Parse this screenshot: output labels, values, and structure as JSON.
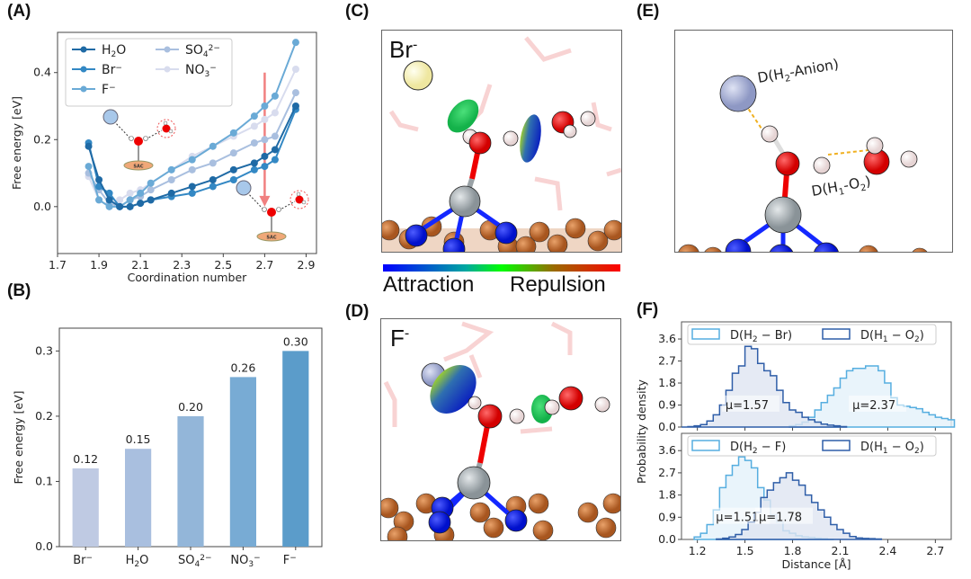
{
  "panels": {
    "A": {
      "label": "(A)"
    },
    "B": {
      "label": "(B)"
    },
    "C": {
      "label": "(C)",
      "ion_label": "Br",
      "ion_charge": "-"
    },
    "D": {
      "label": "(D)",
      "ion_label": "F",
      "ion_charge": "-"
    },
    "E": {
      "label": "(E)",
      "annot1": "D(H",
      "annot1_sub": "2",
      "annot1_tail": "-Anion)",
      "annot2": "D(H",
      "annot2_sub1": "1",
      "annot2_mid": "-O",
      "annot2_sub2": "2",
      "annot2_tail": ")"
    },
    "F": {
      "label": "(F)"
    }
  },
  "colorbar": {
    "left_label": "Attraction",
    "right_label": "Repulsion",
    "colors": [
      "#0000ff",
      "#00ff00",
      "#ff0000"
    ]
  },
  "schematic": {
    "sac_label": "SAC"
  },
  "chart_data": [
    {
      "id": "A",
      "type": "line",
      "title": "",
      "xlabel": "Coordination number",
      "ylabel": "Free energy [eV]",
      "xlim": [
        1.7,
        2.95
      ],
      "ylim": [
        -0.14,
        0.52
      ],
      "xticks": [
        "1.7",
        "1.9",
        "2.1",
        "2.3",
        "2.5",
        "2.7",
        "2.9"
      ],
      "xtick_values": [
        1.7,
        1.9,
        2.1,
        2.3,
        2.5,
        2.7,
        2.9
      ],
      "yticks": [
        "0.0",
        "0.2",
        "0.4"
      ],
      "ytick_values": [
        0.0,
        0.2,
        0.4
      ],
      "legend_position": "top-left",
      "x": [
        1.85,
        1.9,
        1.95,
        2.0,
        2.05,
        2.1,
        2.15,
        2.25,
        2.35,
        2.45,
        2.55,
        2.65,
        2.7,
        2.75,
        2.85
      ],
      "series": [
        {
          "name": "H₂O",
          "name_main": "H",
          "name_sub": "2",
          "name_tail": "O",
          "name_sup": "",
          "color": "#1f6aa5",
          "values": [
            0.18,
            0.08,
            0.02,
            0.0,
            0.0,
            0.01,
            0.02,
            0.04,
            0.06,
            0.08,
            0.11,
            0.13,
            0.15,
            0.17,
            0.3
          ]
        },
        {
          "name": "Br⁻",
          "name_main": "Br",
          "name_sub": "",
          "name_tail": "",
          "name_sup": "−",
          "color": "#3388c4",
          "values": [
            0.19,
            0.06,
            0.04,
            0.0,
            0.0,
            0.01,
            0.02,
            0.03,
            0.04,
            0.06,
            0.08,
            0.11,
            0.12,
            0.14,
            0.29
          ]
        },
        {
          "name": "F⁻",
          "name_main": "F",
          "name_sub": "",
          "name_tail": "",
          "name_sup": "−",
          "color": "#6aaad6",
          "values": [
            0.12,
            0.02,
            0.0,
            0.0,
            0.02,
            0.04,
            0.07,
            0.11,
            0.14,
            0.18,
            0.22,
            0.27,
            0.3,
            0.33,
            0.49
          ]
        },
        {
          "name": "SO₄²⁻",
          "name_main": "SO",
          "name_sub": "4",
          "name_tail": "",
          "name_sup": "2−",
          "color": "#a9bfdf",
          "values": [
            0.1,
            0.05,
            0.01,
            0.0,
            0.02,
            0.03,
            0.05,
            0.08,
            0.11,
            0.13,
            0.16,
            0.19,
            0.2,
            0.21,
            0.34
          ]
        },
        {
          "name": "NO₃⁻",
          "name_main": "NO",
          "name_sub": "3",
          "name_tail": "",
          "name_sup": "−",
          "color": "#d8dcee",
          "values": [
            0.09,
            0.02,
            0.0,
            0.02,
            0.04,
            0.05,
            0.07,
            0.11,
            0.15,
            0.18,
            0.21,
            0.24,
            0.26,
            0.28,
            0.41
          ]
        }
      ],
      "annotation": {
        "type": "arrow",
        "x": 2.7,
        "from_y": 0.4,
        "to_y": 0.0,
        "color": "#f08080"
      }
    },
    {
      "id": "B",
      "type": "bar",
      "title": "",
      "xlabel": "",
      "ylabel": "Free energy [eV]",
      "ylim": [
        0.0,
        0.335
      ],
      "yticks": [
        "0.0",
        "0.1",
        "0.2",
        "0.3"
      ],
      "ytick_values": [
        0.0,
        0.1,
        0.2,
        0.3
      ],
      "categories": [
        {
          "main": "Br",
          "sub": "",
          "sup": "−"
        },
        {
          "main": "H",
          "sub": "2",
          "tail": "O",
          "sup": ""
        },
        {
          "main": "SO",
          "sub": "4",
          "sup": "2−"
        },
        {
          "main": "NO",
          "sub": "3",
          "sup": "−"
        },
        {
          "main": "F",
          "sub": "",
          "sup": "−"
        }
      ],
      "category_names": [
        "Br⁻",
        "H₂O",
        "SO₄²⁻",
        "NO₃⁻",
        "F⁻"
      ],
      "values": [
        0.12,
        0.15,
        0.2,
        0.26,
        0.3
      ],
      "data_labels": [
        "0.12",
        "0.15",
        "0.20",
        "0.26",
        "0.30"
      ],
      "colors": [
        "#bfcae3",
        "#a9bfdf",
        "#93b6d9",
        "#78abd4",
        "#5b9cca"
      ]
    },
    {
      "id": "F-top",
      "type": "area",
      "title": "",
      "xlabel": "",
      "ylabel": "Probability density",
      "xlim": [
        1.1,
        2.8
      ],
      "ylim": [
        0.0,
        4.3
      ],
      "yticks": [
        "0.0",
        "0.9",
        "1.8",
        "2.7",
        "3.6"
      ],
      "ytick_values": [
        0.0,
        0.9,
        1.8,
        2.7,
        3.6
      ],
      "legend_position": "top",
      "series": [
        {
          "name": "D(H₂ − Br)",
          "legend_main": "D(H",
          "legend_sub": "2",
          "legend_tail": " − Br)",
          "color": "#56aee0",
          "fill": "#e4f1fa",
          "mean_label": "μ=2.37",
          "mean": 2.37,
          "bins": [
            1.78,
            1.82,
            1.86,
            1.9,
            1.94,
            1.98,
            2.02,
            2.06,
            2.1,
            2.14,
            2.18,
            2.22,
            2.26,
            2.3,
            2.34,
            2.38,
            2.42,
            2.46,
            2.5,
            2.54,
            2.58,
            2.62,
            2.66,
            2.7,
            2.74,
            2.78
          ],
          "density": [
            0.05,
            0.1,
            0.2,
            0.4,
            0.7,
            1.0,
            1.3,
            1.6,
            2.0,
            2.3,
            2.4,
            2.4,
            2.5,
            2.5,
            2.3,
            1.8,
            1.2,
            0.9,
            0.85,
            0.8,
            0.75,
            0.6,
            0.5,
            0.4,
            0.35,
            0.3
          ]
        },
        {
          "name": "D(H₁ − O₂)",
          "legend_main": "D(H",
          "legend_sub": "1",
          "legend_tail": " − O",
          "legend_sub2": "2",
          "legend_end": ")",
          "color": "#2f5ea8",
          "fill": "#dfe5f1",
          "mean_label": "μ=1.57",
          "mean": 1.57,
          "bins": [
            1.1,
            1.14,
            1.18,
            1.22,
            1.26,
            1.3,
            1.34,
            1.38,
            1.42,
            1.46,
            1.5,
            1.54,
            1.58,
            1.62,
            1.66,
            1.7,
            1.74,
            1.78,
            1.82,
            1.86,
            1.9,
            1.94,
            1.98,
            2.02,
            2.06,
            2.1
          ],
          "density": [
            0.0,
            0.02,
            0.05,
            0.1,
            0.25,
            0.5,
            0.9,
            1.5,
            2.2,
            2.5,
            3.3,
            3.2,
            2.6,
            2.3,
            2.1,
            1.5,
            1.0,
            0.7,
            0.6,
            0.4,
            0.3,
            0.2,
            0.12,
            0.08,
            0.05,
            0.02
          ]
        }
      ]
    },
    {
      "id": "F-bottom",
      "type": "area",
      "title": "",
      "xlabel": "Distance [Å]",
      "ylabel": "Probability density",
      "xlim": [
        1.1,
        2.8
      ],
      "ylim": [
        0.0,
        4.3
      ],
      "xticks": [
        "1.2",
        "1.5",
        "1.8",
        "2.1",
        "2.4",
        "2.7"
      ],
      "xtick_values": [
        1.2,
        1.5,
        1.8,
        2.1,
        2.4,
        2.7
      ],
      "yticks": [
        "0.0",
        "0.9",
        "1.8",
        "2.7",
        "3.6"
      ],
      "ytick_values": [
        0.0,
        0.9,
        1.8,
        2.7,
        3.6
      ],
      "legend_position": "top",
      "series": [
        {
          "name": "D(H₂ − F)",
          "legend_main": "D(H",
          "legend_sub": "2",
          "legend_tail": " − F)",
          "color": "#56aee0",
          "fill": "#e4f1fa",
          "mean_label": "μ=1.51",
          "mean": 1.51,
          "bins": [
            1.18,
            1.22,
            1.26,
            1.3,
            1.34,
            1.38,
            1.42,
            1.46,
            1.5,
            1.54,
            1.58,
            1.62,
            1.66,
            1.7,
            1.74,
            1.78,
            1.82,
            1.86,
            1.9,
            1.94,
            1.98,
            2.02
          ],
          "density": [
            0.1,
            0.25,
            0.6,
            1.2,
            2.1,
            2.6,
            3.0,
            3.35,
            3.2,
            2.9,
            2.1,
            1.6,
            1.0,
            0.7,
            0.35,
            0.25,
            0.15,
            0.1,
            0.08,
            0.05,
            0.03,
            0.0
          ]
        },
        {
          "name": "D(H₁ − O₂)",
          "legend_main": "D(H",
          "legend_sub": "1",
          "legend_tail": " − O",
          "legend_sub2": "2",
          "legend_end": ")",
          "color": "#2f5ea8",
          "fill": "#dfe5f1",
          "mean_label": "μ=1.78",
          "mean": 1.78,
          "bins": [
            1.32,
            1.36,
            1.4,
            1.44,
            1.48,
            1.52,
            1.56,
            1.6,
            1.64,
            1.68,
            1.72,
            1.76,
            1.8,
            1.84,
            1.88,
            1.92,
            1.96,
            2.0,
            2.04,
            2.08,
            2.12,
            2.16,
            2.2,
            2.24,
            2.28,
            2.32
          ],
          "density": [
            0.02,
            0.05,
            0.1,
            0.2,
            0.4,
            0.7,
            1.1,
            1.7,
            2.0,
            2.3,
            2.5,
            2.7,
            2.4,
            2.2,
            1.8,
            1.5,
            1.2,
            0.9,
            0.6,
            0.4,
            0.25,
            0.12,
            0.06,
            0.04,
            0.03,
            0.02
          ]
        }
      ]
    }
  ]
}
